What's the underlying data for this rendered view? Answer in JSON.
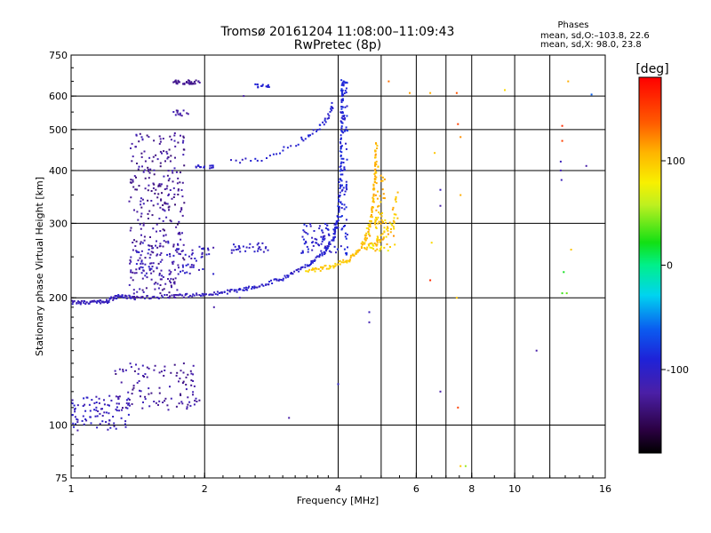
{
  "chart_data": {
    "type": "scatter",
    "title": "Tromsø 20161204 11:08:00–11:09:43",
    "subtitle": "RwPretec (8p)",
    "xlabel": "Frequency [MHz]",
    "ylabel": "Stationary phase Virtual Height [km]",
    "x_scale": "log2",
    "y_scale": "log",
    "xlim": [
      1,
      16
    ],
    "ylim": [
      75,
      750
    ],
    "x_ticks": [
      1,
      2,
      4,
      6,
      8,
      10,
      16
    ],
    "x_grid": [
      2,
      4,
      5,
      6,
      7,
      8,
      10,
      12
    ],
    "y_ticks": [
      75,
      100,
      200,
      300,
      400,
      500,
      600,
      750
    ],
    "y_grid": [
      100,
      200,
      300,
      400,
      500,
      600
    ],
    "grid": true,
    "phases_box": {
      "title": "Phases",
      "line1": "mean, sd,O:–103.8, 22.6",
      "line2": "mean, sd,X:  98.0, 23.8"
    },
    "colorbar": {
      "label": "[deg]",
      "range": [
        -180,
        180
      ],
      "ticks": [
        100,
        0,
        -100
      ]
    },
    "seed": 20161204,
    "o_trace": [
      {
        "f": 1.0,
        "h": 195,
        "p": -110
      },
      {
        "f": 1.1,
        "h": 195,
        "p": -110
      },
      {
        "f": 1.2,
        "h": 196,
        "p": -108
      },
      {
        "f": 1.28,
        "h": 202,
        "p": -105
      },
      {
        "f": 1.4,
        "h": 200,
        "p": -115
      },
      {
        "f": 1.7,
        "h": 202,
        "p": -112
      },
      {
        "f": 2.0,
        "h": 203,
        "p": -108
      },
      {
        "f": 2.3,
        "h": 207,
        "p": -105
      },
      {
        "f": 2.6,
        "h": 212,
        "p": -102
      },
      {
        "f": 3.0,
        "h": 222,
        "p": -100
      },
      {
        "f": 3.4,
        "h": 238,
        "p": -98
      },
      {
        "f": 3.7,
        "h": 255,
        "p": -96
      },
      {
        "f": 3.9,
        "h": 275,
        "p": -94
      },
      {
        "f": 4.0,
        "h": 310,
        "p": -92
      },
      {
        "f": 4.05,
        "h": 400,
        "p": -90
      },
      {
        "f": 4.08,
        "h": 540,
        "p": -88
      },
      {
        "f": 4.1,
        "h": 660,
        "p": -86
      }
    ],
    "f2_upper": [
      {
        "f": 2.3,
        "h": 420,
        "p": -100
      },
      {
        "f": 2.8,
        "h": 430,
        "p": -98
      },
      {
        "f": 3.3,
        "h": 470,
        "p": -97
      },
      {
        "f": 3.6,
        "h": 500,
        "p": -95
      },
      {
        "f": 3.8,
        "h": 540,
        "p": -94
      },
      {
        "f": 3.9,
        "h": 580,
        "p": -92
      }
    ],
    "x_trace": [
      {
        "f": 3.4,
        "h": 232,
        "p": 95
      },
      {
        "f": 3.8,
        "h": 236,
        "p": 98
      },
      {
        "f": 4.2,
        "h": 245,
        "p": 100
      },
      {
        "f": 4.5,
        "h": 262,
        "p": 102
      },
      {
        "f": 4.7,
        "h": 290,
        "p": 104
      },
      {
        "f": 4.8,
        "h": 340,
        "p": 105
      },
      {
        "f": 4.85,
        "h": 400,
        "p": 106
      },
      {
        "f": 4.88,
        "h": 470,
        "p": 107
      }
    ],
    "x_second": [
      {
        "f": 4.6,
        "h": 260,
        "p": 98
      },
      {
        "f": 5.0,
        "h": 275,
        "p": 100
      },
      {
        "f": 5.3,
        "h": 300,
        "p": 102
      },
      {
        "f": 5.45,
        "h": 360,
        "p": 104
      }
    ],
    "clusters": [
      {
        "f": [
          1.35,
          1.8
        ],
        "h": [
          240,
          490
        ],
        "p": [
          -140,
          -110
        ],
        "n": 260
      },
      {
        "f": [
          1.4,
          2.1
        ],
        "h": [
          225,
          270
        ],
        "p": [
          -125,
          -95
        ],
        "n": 90
      },
      {
        "f": [
          1.35,
          1.75
        ],
        "h": [
          200,
          235
        ],
        "p": [
          -135,
          -110
        ],
        "n": 60
      },
      {
        "f": [
          1.0,
          1.35
        ],
        "h": [
          96,
          118
        ],
        "p": [
          -120,
          -95
        ],
        "n": 90
      },
      {
        "f": [
          1.25,
          1.95
        ],
        "h": [
          108,
          140
        ],
        "p": [
          -135,
          -110
        ],
        "n": 110
      },
      {
        "f": [
          1.7,
          1.95
        ],
        "h": [
          640,
          655
        ],
        "p": [
          -135,
          -120
        ],
        "n": 40
      },
      {
        "f": [
          2.6,
          2.8
        ],
        "h": [
          628,
          640
        ],
        "p": [
          -100,
          -90
        ],
        "n": 14
      },
      {
        "f": [
          1.7,
          1.85
        ],
        "h": [
          538,
          555
        ],
        "p": [
          -130,
          -110
        ],
        "n": 12
      },
      {
        "f": [
          1.9,
          2.1
        ],
        "h": [
          405,
          412
        ],
        "p": [
          -105,
          -95
        ],
        "n": 16
      },
      {
        "f": [
          2.3,
          2.8
        ],
        "h": [
          255,
          270
        ],
        "p": [
          -112,
          -96
        ],
        "n": 30
      },
      {
        "f": [
          3.3,
          4.0
        ],
        "h": [
          255,
          300
        ],
        "p": [
          -110,
          -85
        ],
        "n": 70
      },
      {
        "f": [
          4.05,
          4.2
        ],
        "h": [
          250,
          660
        ],
        "p": [
          -105,
          -80
        ],
        "n": 90
      },
      {
        "f": [
          4.6,
          5.5
        ],
        "h": [
          255,
          310
        ],
        "p": [
          70,
          120
        ],
        "n": 40
      },
      {
        "f": [
          4.85,
          5.1
        ],
        "h": [
          260,
          420
        ],
        "p": [
          90,
          115
        ],
        "n": 50
      }
    ],
    "sparse": [
      {
        "f": 6.45,
        "h": 610,
        "p": 110
      },
      {
        "f": 6.6,
        "h": 440,
        "p": 100
      },
      {
        "f": 6.8,
        "h": 360,
        "p": -110
      },
      {
        "f": 6.8,
        "h": 330,
        "p": -120
      },
      {
        "f": 6.5,
        "h": 270,
        "p": 90
      },
      {
        "f": 6.45,
        "h": 220,
        "p": 160
      },
      {
        "f": 6.8,
        "h": 120,
        "p": -120
      },
      {
        "f": 7.4,
        "h": 610,
        "p": 140
      },
      {
        "f": 7.45,
        "h": 515,
        "p": 150
      },
      {
        "f": 7.55,
        "h": 480,
        "p": 120
      },
      {
        "f": 7.55,
        "h": 350,
        "p": 110
      },
      {
        "f": 7.4,
        "h": 200,
        "p": 100
      },
      {
        "f": 7.45,
        "h": 110,
        "p": 150
      },
      {
        "f": 7.55,
        "h": 80,
        "p": 100
      },
      {
        "f": 7.75,
        "h": 80,
        "p": 50
      },
      {
        "f": 9.5,
        "h": 620,
        "p": 90
      },
      {
        "f": 12.8,
        "h": 510,
        "p": 160
      },
      {
        "f": 12.8,
        "h": 470,
        "p": 150
      },
      {
        "f": 12.7,
        "h": 420,
        "p": -110
      },
      {
        "f": 12.7,
        "h": 400,
        "p": -115
      },
      {
        "f": 12.75,
        "h": 380,
        "p": -110
      },
      {
        "f": 13.2,
        "h": 650,
        "p": 110
      },
      {
        "f": 13.4,
        "h": 260,
        "p": 100
      },
      {
        "f": 12.9,
        "h": 230,
        "p": 20
      },
      {
        "f": 13.1,
        "h": 205,
        "p": 40
      },
      {
        "f": 12.8,
        "h": 205,
        "p": 30
      },
      {
        "f": 11.2,
        "h": 150,
        "p": -120
      },
      {
        "f": 14.5,
        "h": 410,
        "p": -120
      },
      {
        "f": 14.9,
        "h": 605,
        "p": -60
      },
      {
        "f": 4.7,
        "h": 185,
        "p": -110
      },
      {
        "f": 4.7,
        "h": 175,
        "p": -115
      },
      {
        "f": 5.8,
        "h": 610,
        "p": 115
      },
      {
        "f": 5.2,
        "h": 650,
        "p": 130
      },
      {
        "f": 3.1,
        "h": 104,
        "p": -120
      },
      {
        "f": 4.0,
        "h": 125,
        "p": -100
      },
      {
        "f": 2.45,
        "h": 600,
        "p": -120
      },
      {
        "f": 2.1,
        "h": 190,
        "p": -120
      },
      {
        "f": 2.4,
        "h": 200,
        "p": -115
      }
    ]
  }
}
